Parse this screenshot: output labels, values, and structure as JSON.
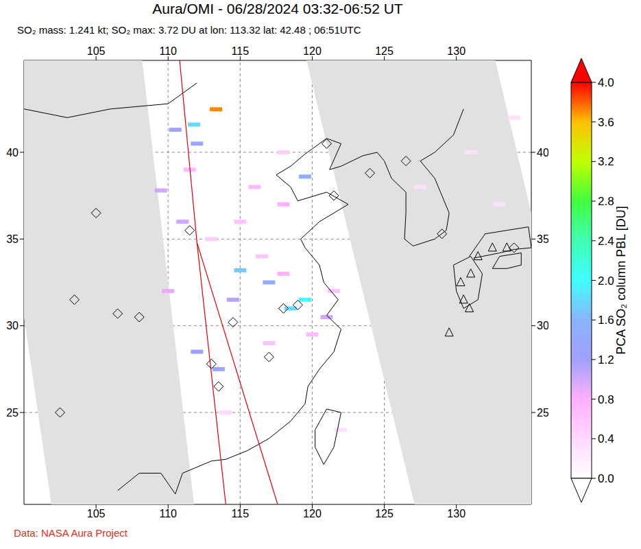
{
  "chart_data": {
    "type": "map",
    "title": "Aura/OMI - 06/28/2024 03:32-06:52 UT",
    "subtitle": "SO₂ mass: 1.241 kt; SO₂ max: 3.72 DU at lon: 113.32 lat: 42.48 ; 06:51UTC",
    "footer": "Data: NASA Aura Project",
    "xlim": [
      100,
      135.2
    ],
    "xticks": [
      105,
      110,
      115,
      120,
      125,
      130
    ],
    "ylim": [
      19.7,
      45.3
    ],
    "yticks": [
      25,
      30,
      35,
      40
    ],
    "grid": true,
    "colorbar": {
      "label": "PCA SO₂ column PBL [DU]",
      "range": [
        0,
        4
      ],
      "ticks": [
        {
          "value": 0,
          "label": "0.0"
        },
        {
          "value": 0.4,
          "label": "0.4"
        },
        {
          "value": 0.8,
          "label": "0.8"
        },
        {
          "value": 1.2,
          "label": "1.2"
        },
        {
          "value": 1.6,
          "label": "1.6"
        },
        {
          "value": 2,
          "label": "2.0"
        },
        {
          "value": 2.4,
          "label": "2.4"
        },
        {
          "value": 2.8,
          "label": "2.8"
        },
        {
          "value": 3.2,
          "label": "3.2"
        },
        {
          "value": 3.6,
          "label": "3.6"
        },
        {
          "value": 4,
          "label": "4.0"
        }
      ]
    },
    "pixels": {
      "lon": [
        110.5,
        111.8,
        113.32,
        109.5,
        111,
        115,
        117,
        119.5,
        118.5,
        114.5,
        113.5,
        112,
        119.5,
        118,
        116,
        115,
        121,
        120,
        112,
        113,
        116.5,
        118,
        110,
        111.5,
        118,
        121.5,
        117,
        114,
        122,
        127.5,
        131,
        133,
        134
      ],
      "lat": [
        41.3,
        41.6,
        42.48,
        37.8,
        36,
        33.2,
        32.5,
        31.5,
        31,
        31.5,
        27.5,
        28.5,
        38.6,
        37,
        38,
        36,
        30.5,
        29.5,
        40.5,
        35,
        34,
        33,
        32,
        39,
        40,
        32,
        29,
        25,
        24,
        38,
        40,
        37,
        42
      ],
      "values": [
        1.2,
        1.8,
        3.72,
        1.0,
        1.0,
        1.7,
        1.4,
        2.0,
        1.8,
        1.1,
        1.3,
        1.2,
        1.5,
        0.8,
        0.7,
        0.6,
        1.0,
        0.7,
        1.3,
        0.5,
        0.6,
        0.8,
        0.9,
        0.7,
        0.5,
        0.6,
        0.6,
        0.4,
        0.3,
        0.3,
        0.3,
        0.3,
        0.3
      ]
    },
    "no_data_regions": [
      {
        "lon": [
          100,
          108.2,
          111.8,
          101.9,
          100
        ],
        "lat": [
          45.3,
          45.3,
          19.7,
          19.7,
          30.5
        ]
      },
      {
        "lon": [
          119.6,
          132.7,
          135.2,
          135.2,
          127.1
        ],
        "lat": [
          45.3,
          45.3,
          36.5,
          19.7,
          19.7
        ]
      }
    ],
    "orbit_lines": [
      {
        "lon": [
          110.8,
          112,
          114
        ],
        "lat": [
          45.3,
          34.8,
          19.7
        ]
      },
      {
        "lon": [
          112,
          117.6
        ],
        "lat": [
          34.8,
          19.7
        ]
      }
    ],
    "coastlines": [
      {
        "lon": [
          100,
          103,
          106,
          110,
          112
        ],
        "lat": [
          42.5,
          42,
          42.5,
          42.8,
          44
        ]
      },
      {
        "lon": [
          106.5,
          108,
          109.5,
          110.5,
          111,
          113,
          114,
          115.5,
          117,
          118.5,
          119.5,
          119.7,
          120.5,
          121.5,
          122,
          121,
          121.8,
          120.8,
          120.5,
          119.5,
          119.2,
          120.5,
          122.5,
          121,
          119,
          118.5,
          117.5,
          118.5,
          119.5,
          121,
          122,
          121.2,
          122,
          123.5,
          124.5,
          125,
          125.5,
          126.5,
          126.5,
          126.4,
          127,
          128.5,
          129.3,
          129.5,
          129,
          128.5,
          127.5,
          128.5,
          129.8,
          130.5
        ],
        "lat": [
          20.5,
          21.5,
          21.5,
          20.3,
          21.5,
          22.2,
          22.3,
          22.8,
          23.5,
          24.5,
          25.5,
          26.5,
          27.5,
          28.5,
          29.8,
          30.6,
          31.5,
          32.5,
          33.5,
          34.5,
          35,
          36,
          37,
          37.7,
          37.2,
          38,
          38.7,
          39.2,
          39.9,
          40.8,
          40.5,
          39,
          39.2,
          39.8,
          40,
          39.5,
          38.5,
          37.7,
          36.5,
          35,
          34.6,
          35,
          35.5,
          36.5,
          37.5,
          38.5,
          39.5,
          40,
          41,
          42.5
        ]
      },
      {
        "lon": [
          121,
          122,
          121.5,
          120.8,
          120.2,
          120.2,
          121
        ],
        "lat": [
          25.2,
          25,
          23,
          22,
          23,
          24,
          25.2
        ]
      },
      {
        "lon": [
          129.8,
          131,
          131.8,
          131.5,
          130.5,
          130,
          129.8
        ],
        "lat": [
          33.5,
          34,
          33,
          31.5,
          31,
          32,
          33.5
        ]
      },
      {
        "lon": [
          130.9,
          132,
          133.5,
          135,
          135.2,
          134,
          133,
          131.2
        ],
        "lat": [
          34,
          35.3,
          35.5,
          35.7,
          34.5,
          34.4,
          34.2,
          33.9
        ]
      },
      {
        "lon": [
          132.5,
          133,
          134.5,
          134.5,
          133.5,
          132.5
        ],
        "lat": [
          33.3,
          34,
          34.2,
          33.5,
          33.3,
          33.3
        ]
      }
    ],
    "volcanoes": [
      {
        "marker": "diamond",
        "lon": [
          102.5,
          103.5,
          105,
          106.5,
          108,
          111.5,
          113,
          114.5,
          118,
          119,
          117,
          121,
          121.5,
          124,
          126.5,
          129,
          134,
          113.5
        ],
        "lat": [
          25,
          31.5,
          36.5,
          30.7,
          30.5,
          35.5,
          27.8,
          30.2,
          31,
          31.2,
          28.2,
          40.5,
          37.5,
          38.8,
          39.5,
          35.3,
          34.5,
          26.5
        ]
      },
      {
        "marker": "triangle",
        "lon": [
          130.5,
          130.3,
          130.9,
          131,
          129.5,
          131.5,
          132.5,
          133.5
        ],
        "lat": [
          31.5,
          32.5,
          31,
          33,
          29.6,
          34,
          34.5,
          34.5
        ]
      }
    ]
  }
}
